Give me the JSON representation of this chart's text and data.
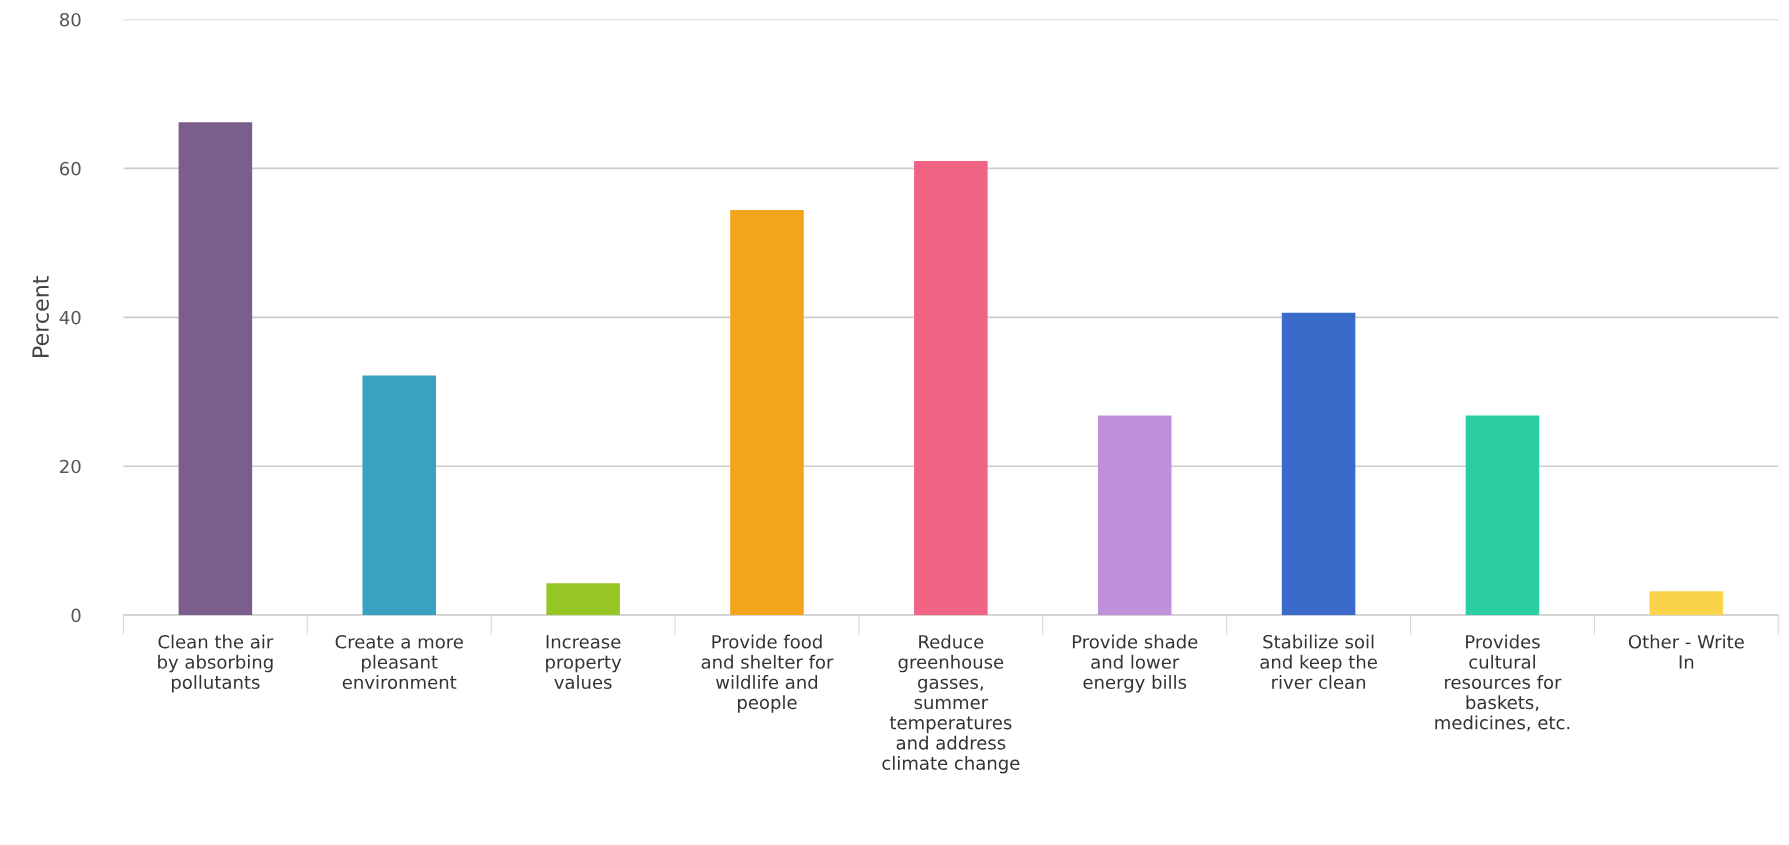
{
  "chart_data": {
    "type": "bar",
    "ylabel": "Percent",
    "categories": [
      "Clean the air\nby absorbing\npollutants",
      "Create a more\npleasant\nenvironment",
      "Increase\nproperty\nvalues",
      "Provide food\nand shelter for\nwildlife and\npeople",
      "Reduce\ngreenhouse\ngasses,\nsummer\ntemperatures\nand address\nclimate change",
      "Provide shade\nand lower\nenergy bills",
      "Stabilize soil\nand keep the\nriver clean",
      "Provides\ncultural\nresources for\nbaskets,\nmedicines, etc.",
      "Other - Write\nIn"
    ],
    "values": [
      66.2,
      32.2,
      4.3,
      54.4,
      61.0,
      26.8,
      40.6,
      26.8,
      3.2
    ],
    "colors": [
      "#7b5e8c",
      "#3aa1c1",
      "#95c623",
      "#f4a41a",
      "#f06383",
      "#c091db",
      "#3a6bcb",
      "#2bcea1",
      "#fbd34a"
    ],
    "ylim": [
      0,
      80
    ],
    "yticks": [
      0,
      20,
      40,
      60,
      80
    ],
    "grid": "y"
  }
}
